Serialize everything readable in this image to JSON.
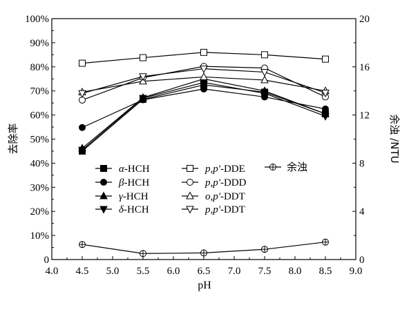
{
  "chart_data": {
    "type": "line",
    "xlabel": "pH",
    "ylabel": "去除率",
    "y2label": "余浊 /NTU",
    "x_ticks": [
      "4.0",
      "4.5",
      "5.0",
      "5.5",
      "6.0",
      "6.5",
      "7.0",
      "7.5",
      "8.0",
      "8.5",
      "9.0"
    ],
    "y_ticks": [
      "0",
      "10%",
      "20%",
      "30%",
      "40%",
      "50%",
      "60%",
      "70%",
      "80%",
      "90%",
      "100%"
    ],
    "y2_ticks": [
      "0",
      "4",
      "8",
      "12",
      "16",
      "20"
    ],
    "xlim": [
      4.0,
      9.0
    ],
    "ylim": [
      0,
      100
    ],
    "y2lim": [
      0,
      20
    ],
    "grid": false,
    "legend_position": "center-left",
    "x": [
      4.5,
      5.5,
      6.5,
      7.5,
      8.5
    ],
    "series": [
      {
        "name": "α-HCH",
        "name_prefix": "α",
        "name_suffix": "-HCH",
        "marker": "square-filled",
        "axis": "left",
        "values": [
          45,
          66.5,
          72.5,
          69.5,
          60.5
        ]
      },
      {
        "name": "β-HCH",
        "name_prefix": "β",
        "name_suffix": "-HCH",
        "marker": "circle-filled",
        "axis": "left",
        "values": [
          54.8,
          66.3,
          70.8,
          67.5,
          62.5
        ]
      },
      {
        "name": "γ-HCH",
        "name_prefix": "γ",
        "name_suffix": "-HCH",
        "marker": "triangle-up-filled",
        "axis": "left",
        "values": [
          46.2,
          67.2,
          75.0,
          70.0,
          60.5
        ]
      },
      {
        "name": "δ-HCH",
        "name_prefix": "δ",
        "name_suffix": "-HCH",
        "marker": "triangle-down-filled",
        "axis": "left",
        "values": [
          45.5,
          67.0,
          73.5,
          69.0,
          59.5
        ]
      },
      {
        "name": "p,p'-DDE",
        "name_prefix": "p,p'",
        "name_suffix": "-DDE",
        "marker": "square-open",
        "axis": "left",
        "values": [
          81.5,
          83.8,
          86.0,
          85.0,
          83.2
        ]
      },
      {
        "name": "p,p'-DDD",
        "name_prefix": "p,p'",
        "name_suffix": "-DDD",
        "marker": "circle-open",
        "axis": "left",
        "values": [
          66.2,
          75.5,
          80.2,
          79.5,
          67.5
        ]
      },
      {
        "name": "o,p'-DDT",
        "name_prefix": "o,p'",
        "name_suffix": "-DDT",
        "marker": "triangle-up-open",
        "axis": "left",
        "values": [
          69.5,
          74.0,
          75.8,
          74.5,
          70.0
        ]
      },
      {
        "name": "p,p'-DDT",
        "name_prefix": "p,p'",
        "name_suffix": "-DDT",
        "marker": "triangle-down-open",
        "axis": "left",
        "values": [
          69.0,
          76.0,
          79.2,
          77.8,
          69.2
        ]
      },
      {
        "name": "余浊",
        "name_prefix": "",
        "name_suffix": "余浊",
        "marker": "circle-cross",
        "axis": "right",
        "values": [
          1.25,
          0.5,
          0.55,
          0.85,
          1.45
        ]
      }
    ]
  }
}
